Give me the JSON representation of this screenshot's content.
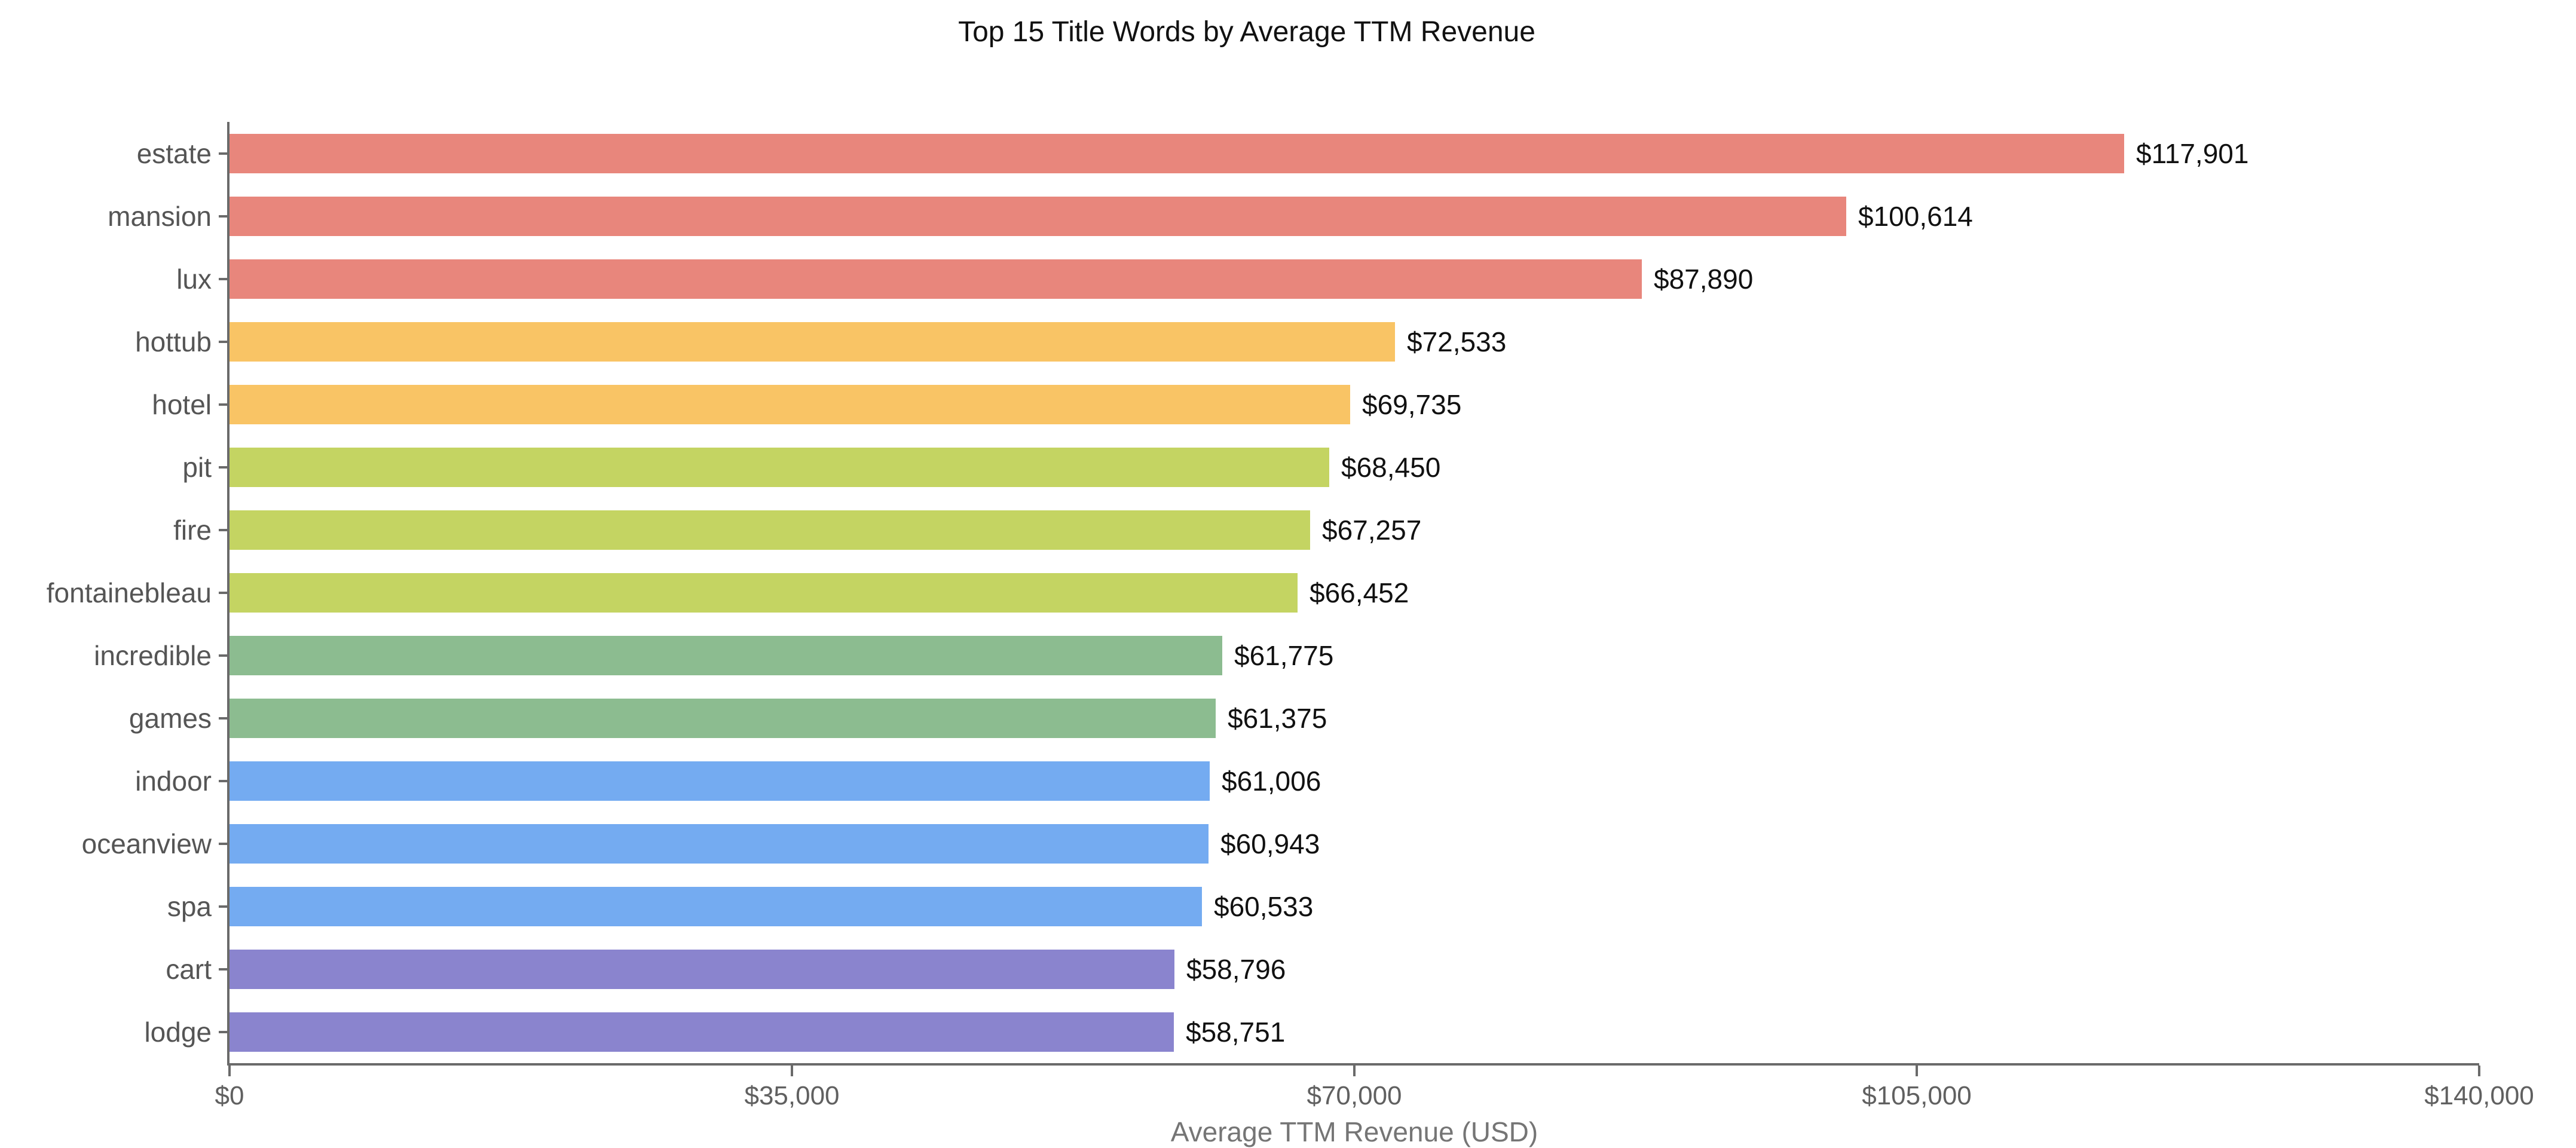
{
  "chart_data": {
    "type": "bar",
    "orientation": "horizontal",
    "title": "Top 15 Title Words by Average TTM Revenue",
    "xlabel": "Average TTM Revenue (USD)",
    "ylabel": "",
    "xlim": [
      0,
      140000
    ],
    "grid": false,
    "legend": false,
    "x_ticks": {
      "values": [
        0,
        35000,
        70000,
        105000,
        140000
      ],
      "labels": [
        "$0",
        "$35,000",
        "$70,000",
        "$105,000",
        "$140,000"
      ]
    },
    "categories": [
      "estate",
      "mansion",
      "lux",
      "hottub",
      "hotel",
      "pit",
      "fire",
      "fontainebleau",
      "incredible",
      "games",
      "indoor",
      "oceanview",
      "spa",
      "cart",
      "lodge"
    ],
    "values": [
      117901,
      100614,
      87890,
      72533,
      69735,
      68450,
      67257,
      66452,
      61775,
      61375,
      61006,
      60943,
      60533,
      58796,
      58751
    ],
    "value_labels": [
      "$117,901",
      "$100,614",
      "$87,890",
      "$72,533",
      "$69,735",
      "$68,450",
      "$67,257",
      "$66,452",
      "$61,775",
      "$61,375",
      "$61,006",
      "$60,943",
      "$60,533",
      "$58,796",
      "$58,751"
    ],
    "bar_colors": [
      "#E8867C",
      "#E8867C",
      "#E8867C",
      "#F9C465",
      "#F9C465",
      "#C4D462",
      "#C4D462",
      "#C4D462",
      "#8CBC90",
      "#8CBC90",
      "#74ABF1",
      "#74ABF1",
      "#74ABF1",
      "#8A84CE",
      "#8A84CE"
    ],
    "colors": {
      "title": "#111111",
      "value_label": "#111111",
      "category_label": "#555555",
      "tick_label": "#606060",
      "axis_label": "#757575",
      "spine": "#6a6a6a",
      "background": "#ffffff"
    }
  }
}
